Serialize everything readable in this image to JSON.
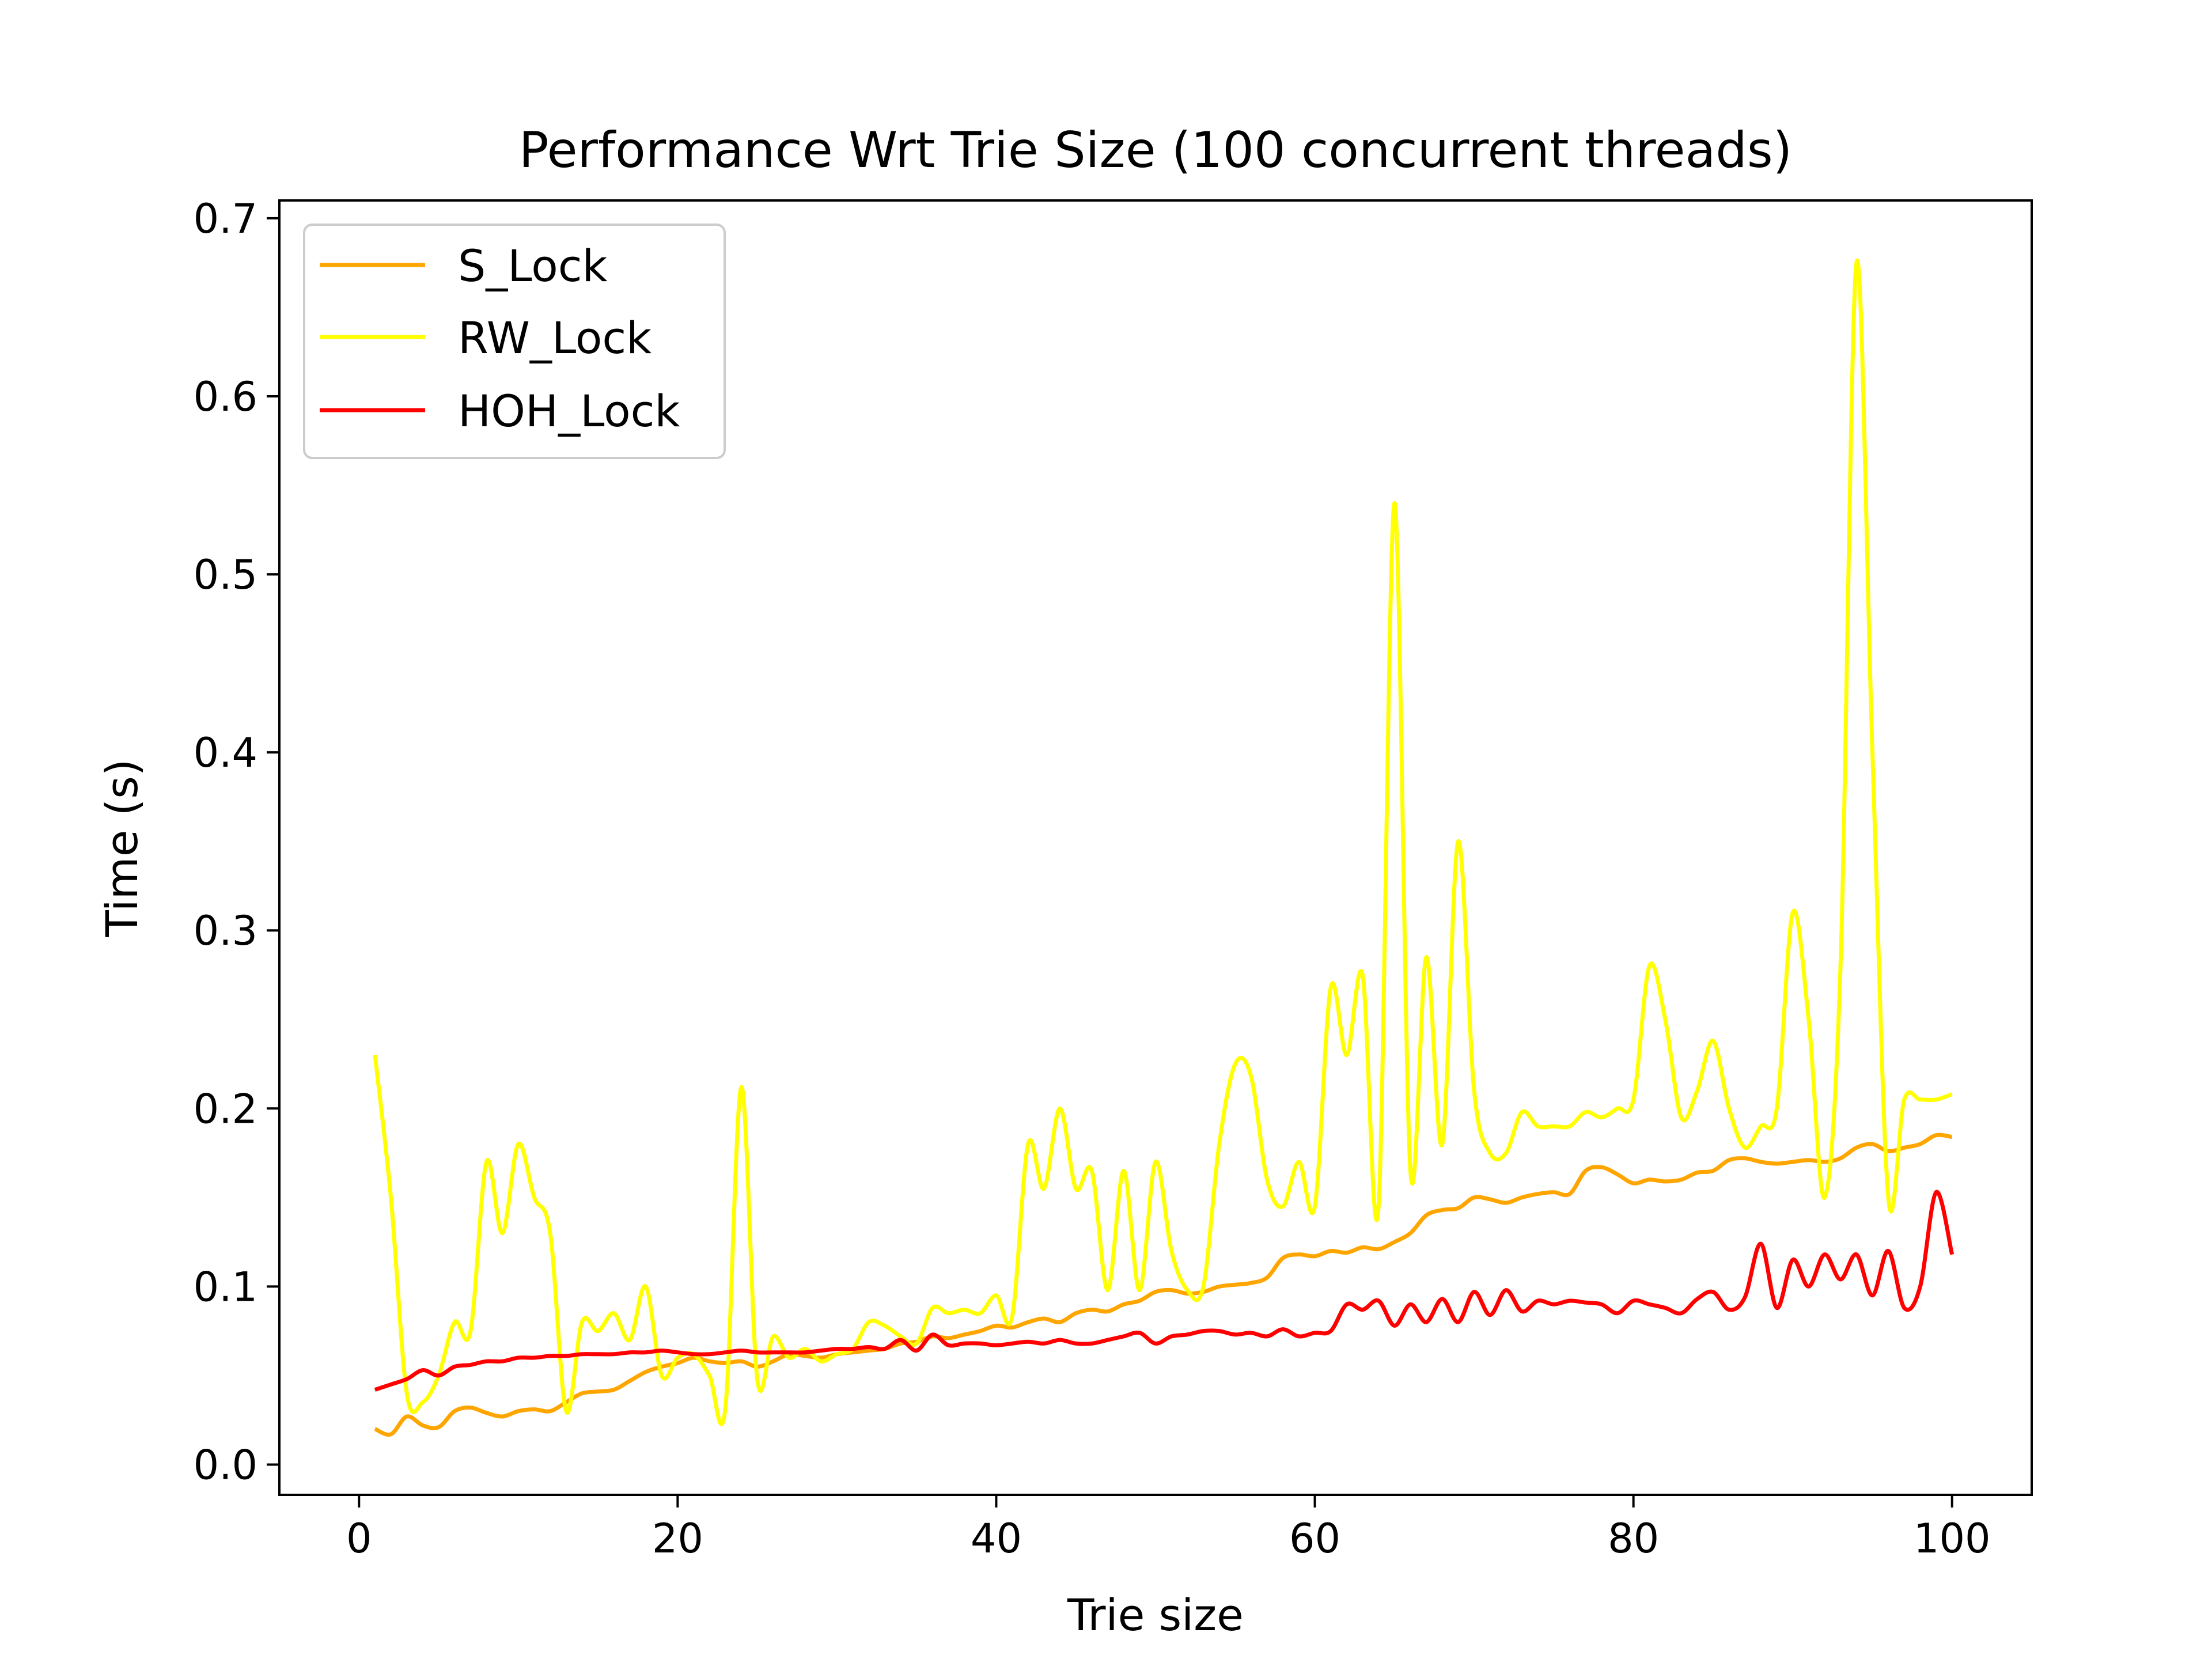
{
  "chart_data": {
    "type": "line",
    "title": "Performance Wrt Trie Size (100 concurrent threads)",
    "xlabel": "Trie size",
    "ylabel": "Time (s)",
    "xlim": [
      -5,
      105
    ],
    "ylim": [
      -0.017,
      0.71
    ],
    "xticks": [
      0,
      20,
      40,
      60,
      80,
      100
    ],
    "yticks": [
      0.0,
      0.1,
      0.2,
      0.3,
      0.4,
      0.5,
      0.6,
      0.7
    ],
    "xtick_labels": [
      "0",
      "20",
      "40",
      "60",
      "80",
      "100"
    ],
    "ytick_labels": [
      "0.0",
      "0.1",
      "0.2",
      "0.3",
      "0.4",
      "0.5",
      "0.6",
      "0.7"
    ],
    "grid": false,
    "legend_position": "upper-left",
    "series": [
      {
        "name": "S_Lock",
        "color": "#ffa500",
        "x": [
          1,
          2,
          3,
          4,
          5,
          6,
          7,
          8,
          9,
          10,
          11,
          12,
          13,
          14,
          15,
          16,
          17,
          18,
          19,
          20,
          21,
          22,
          23,
          24,
          25,
          26,
          27,
          28,
          29,
          30,
          31,
          32,
          33,
          34,
          35,
          36,
          37,
          38,
          39,
          40,
          41,
          42,
          43,
          44,
          45,
          46,
          47,
          48,
          49,
          50,
          51,
          52,
          53,
          54,
          55,
          56,
          57,
          58,
          59,
          60,
          61,
          62,
          63,
          64,
          65,
          66,
          67,
          68,
          69,
          70,
          71,
          72,
          73,
          74,
          75,
          76,
          77,
          78,
          79,
          80,
          81,
          82,
          83,
          84,
          85,
          86,
          87,
          88,
          89,
          90,
          91,
          92,
          93,
          94,
          95,
          96,
          97,
          98,
          99,
          100
        ],
        "values": [
          0.02,
          0.017,
          0.027,
          0.022,
          0.021,
          0.03,
          0.032,
          0.029,
          0.027,
          0.03,
          0.031,
          0.03,
          0.035,
          0.04,
          0.041,
          0.042,
          0.047,
          0.052,
          0.055,
          0.057,
          0.06,
          0.058,
          0.057,
          0.058,
          0.055,
          0.058,
          0.062,
          0.061,
          0.06,
          0.062,
          0.063,
          0.064,
          0.065,
          0.068,
          0.069,
          0.072,
          0.071,
          0.073,
          0.075,
          0.078,
          0.077,
          0.08,
          0.082,
          0.08,
          0.085,
          0.087,
          0.086,
          0.09,
          0.092,
          0.097,
          0.098,
          0.096,
          0.097,
          0.1,
          0.101,
          0.102,
          0.105,
          0.116,
          0.118,
          0.117,
          0.12,
          0.119,
          0.122,
          0.121,
          0.125,
          0.13,
          0.14,
          0.143,
          0.144,
          0.15,
          0.149,
          0.147,
          0.15,
          0.152,
          0.153,
          0.152,
          0.165,
          0.167,
          0.163,
          0.158,
          0.16,
          0.159,
          0.16,
          0.164,
          0.165,
          0.171,
          0.172,
          0.17,
          0.169,
          0.17,
          0.171,
          0.17,
          0.172,
          0.178,
          0.18,
          0.176,
          0.178,
          0.18,
          0.185,
          0.184
        ]
      },
      {
        "name": "RW_Lock",
        "color": "#ffff00",
        "x": [
          1,
          2,
          3,
          4,
          5,
          6,
          7,
          8,
          9,
          10,
          11,
          12,
          13,
          14,
          15,
          16,
          17,
          18,
          19,
          20,
          21,
          22,
          23,
          24,
          25,
          26,
          27,
          28,
          29,
          30,
          31,
          32,
          33,
          34,
          35,
          36,
          37,
          38,
          39,
          40,
          41,
          42,
          43,
          44,
          45,
          46,
          47,
          48,
          49,
          50,
          51,
          52,
          53,
          54,
          55,
          56,
          57,
          58,
          59,
          60,
          61,
          62,
          63,
          64,
          65,
          66,
          67,
          68,
          69,
          70,
          71,
          72,
          73,
          74,
          75,
          76,
          77,
          78,
          79,
          80,
          81,
          82,
          83,
          84,
          85,
          86,
          87,
          88,
          89,
          90,
          91,
          92,
          93,
          94,
          95,
          96,
          97,
          98,
          99,
          100
        ],
        "values": [
          0.23,
          0.15,
          0.04,
          0.035,
          0.05,
          0.08,
          0.075,
          0.17,
          0.13,
          0.18,
          0.15,
          0.13,
          0.03,
          0.08,
          0.075,
          0.085,
          0.07,
          0.1,
          0.05,
          0.06,
          0.062,
          0.05,
          0.032,
          0.212,
          0.048,
          0.072,
          0.06,
          0.065,
          0.058,
          0.062,
          0.065,
          0.08,
          0.078,
          0.072,
          0.068,
          0.088,
          0.085,
          0.087,
          0.085,
          0.095,
          0.083,
          0.18,
          0.155,
          0.2,
          0.155,
          0.165,
          0.098,
          0.165,
          0.098,
          0.17,
          0.12,
          0.098,
          0.1,
          0.18,
          0.225,
          0.218,
          0.16,
          0.145,
          0.17,
          0.145,
          0.268,
          0.23,
          0.275,
          0.145,
          0.54,
          0.165,
          0.285,
          0.18,
          0.35,
          0.21,
          0.175,
          0.175,
          0.198,
          0.19,
          0.19,
          0.19,
          0.198,
          0.195,
          0.2,
          0.205,
          0.28,
          0.25,
          0.195,
          0.21,
          0.238,
          0.2,
          0.178,
          0.19,
          0.2,
          0.31,
          0.25,
          0.15,
          0.28,
          0.675,
          0.4,
          0.15,
          0.205,
          0.205,
          0.205,
          0.208
        ]
      },
      {
        "name": "HOH_Lock",
        "color": "#ff0000",
        "x": [
          1,
          2,
          3,
          4,
          5,
          6,
          7,
          8,
          9,
          10,
          11,
          12,
          13,
          14,
          15,
          16,
          17,
          18,
          19,
          20,
          21,
          22,
          23,
          24,
          25,
          26,
          27,
          28,
          29,
          30,
          31,
          32,
          33,
          34,
          35,
          36,
          37,
          38,
          39,
          40,
          41,
          42,
          43,
          44,
          45,
          46,
          47,
          48,
          49,
          50,
          51,
          52,
          53,
          54,
          55,
          56,
          57,
          58,
          59,
          60,
          61,
          62,
          63,
          64,
          65,
          66,
          67,
          68,
          69,
          70,
          71,
          72,
          73,
          74,
          75,
          76,
          77,
          78,
          79,
          80,
          81,
          82,
          83,
          84,
          85,
          86,
          87,
          88,
          89,
          90,
          91,
          92,
          93,
          94,
          95,
          96,
          97,
          98,
          99,
          100
        ],
        "values": [
          0.042,
          0.045,
          0.048,
          0.053,
          0.05,
          0.055,
          0.056,
          0.058,
          0.058,
          0.06,
          0.06,
          0.061,
          0.061,
          0.062,
          0.062,
          0.062,
          0.063,
          0.063,
          0.064,
          0.063,
          0.062,
          0.062,
          0.063,
          0.064,
          0.063,
          0.063,
          0.063,
          0.063,
          0.064,
          0.065,
          0.065,
          0.066,
          0.065,
          0.07,
          0.064,
          0.073,
          0.067,
          0.068,
          0.068,
          0.067,
          0.068,
          0.069,
          0.068,
          0.07,
          0.068,
          0.068,
          0.07,
          0.072,
          0.074,
          0.068,
          0.072,
          0.073,
          0.075,
          0.075,
          0.073,
          0.074,
          0.072,
          0.076,
          0.072,
          0.074,
          0.075,
          0.09,
          0.087,
          0.092,
          0.078,
          0.09,
          0.08,
          0.093,
          0.08,
          0.097,
          0.084,
          0.098,
          0.086,
          0.092,
          0.09,
          0.092,
          0.091,
          0.09,
          0.085,
          0.092,
          0.09,
          0.088,
          0.085,
          0.093,
          0.097,
          0.087,
          0.094,
          0.124,
          0.088,
          0.115,
          0.1,
          0.118,
          0.104,
          0.118,
          0.095,
          0.12,
          0.088,
          0.1,
          0.153,
          0.118
        ]
      }
    ]
  }
}
